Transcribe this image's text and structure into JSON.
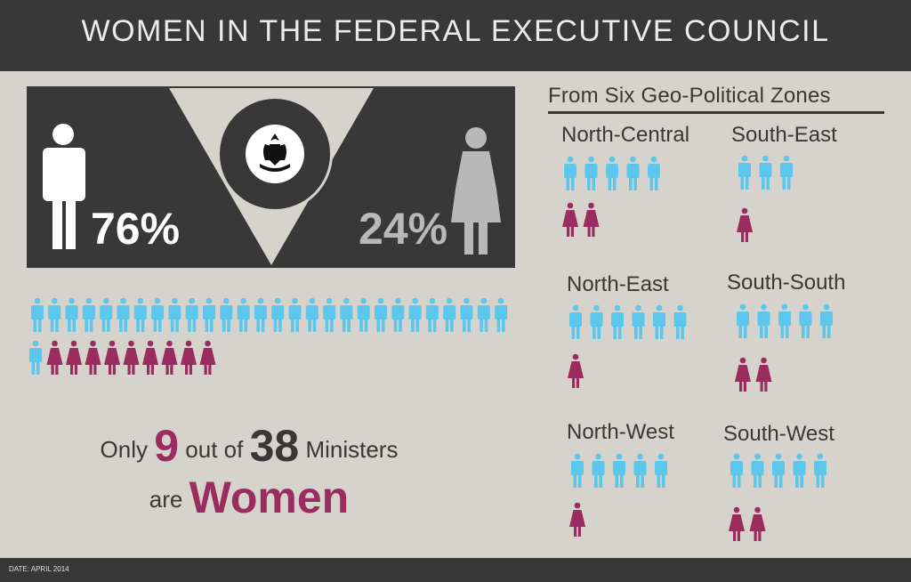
{
  "header": {
    "title": "WOMEN IN THE FEDERAL EXECUTIVE COUNCIL"
  },
  "footer": {
    "date": "DATE: APRIL 2014"
  },
  "colors": {
    "men": "#5cc6ec",
    "women": "#9b2c60",
    "dark": "#383838",
    "background": "#d6d3cc"
  },
  "chart_data": {
    "type": "pictogram",
    "overall": {
      "men_percent_label": "76%",
      "women_percent_label": "24%",
      "total": 38,
      "women": 9,
      "men": 29
    },
    "statement": {
      "prefix": "Only",
      "women_count": "9",
      "middle": "out of",
      "total_count": "38",
      "suffix": "Ministers",
      "line2_prefix": "are",
      "line2_word": "Women"
    },
    "zones_title": "From Six Geo-Political Zones",
    "zones": [
      {
        "name": "North-Central",
        "men": 5,
        "women": 2
      },
      {
        "name": "South-East",
        "men": 3,
        "women": 1
      },
      {
        "name": "North-East",
        "men": 6,
        "women": 1
      },
      {
        "name": "South-South",
        "men": 5,
        "women": 2
      },
      {
        "name": "North-West",
        "men": 5,
        "women": 1
      },
      {
        "name": "South-West",
        "men": 5,
        "women": 2
      }
    ]
  }
}
